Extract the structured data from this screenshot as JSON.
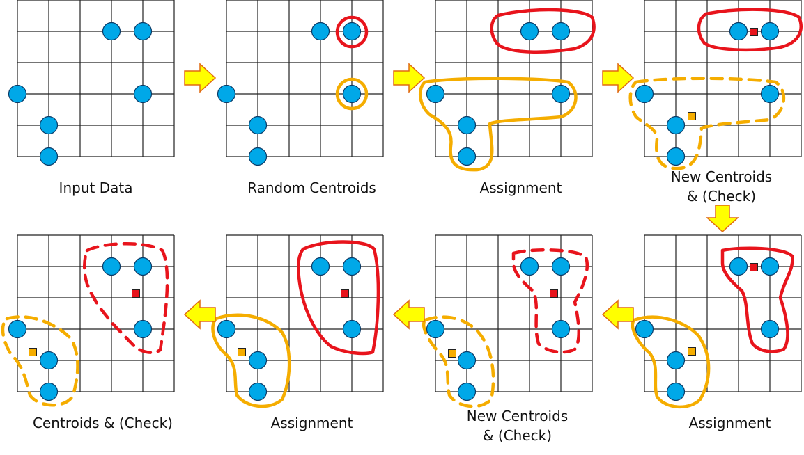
{
  "colors": {
    "grid": "#222222",
    "point_fill": "#00a8e8",
    "point_stroke": "#0a3a66",
    "cluster_red": "#e8141c",
    "cluster_orange": "#f5ad00",
    "arrow_fill": "#ffff00",
    "arrow_stroke": "#e06a10",
    "centroid_stroke": "#222222"
  },
  "panels": [
    {
      "id": "p1",
      "caption": [
        "Input Data"
      ]
    },
    {
      "id": "p2",
      "caption": [
        "Random Centroids"
      ]
    },
    {
      "id": "p3",
      "caption": [
        "Assignment"
      ]
    },
    {
      "id": "p4",
      "caption": [
        "New Centroids",
        "& (Check)"
      ]
    },
    {
      "id": "p5",
      "caption": [
        "Centroids & (Check)"
      ]
    },
    {
      "id": "p6",
      "caption": [
        "Assignment"
      ]
    },
    {
      "id": "p7",
      "caption": [
        "New Centroids",
        "& (Check)"
      ]
    },
    {
      "id": "p8",
      "caption": [
        "Assignment"
      ]
    }
  ],
  "arrows": [
    {
      "from": "p1",
      "to": "p2",
      "direction": "right"
    },
    {
      "from": "p2",
      "to": "p3",
      "direction": "right"
    },
    {
      "from": "p3",
      "to": "p4",
      "direction": "right"
    },
    {
      "from": "p4",
      "to": "p8",
      "direction": "down"
    },
    {
      "from": "p8",
      "to": "p7",
      "direction": "left"
    },
    {
      "from": "p7",
      "to": "p6",
      "direction": "left"
    },
    {
      "from": "p6",
      "to": "p5",
      "direction": "left"
    }
  ]
}
